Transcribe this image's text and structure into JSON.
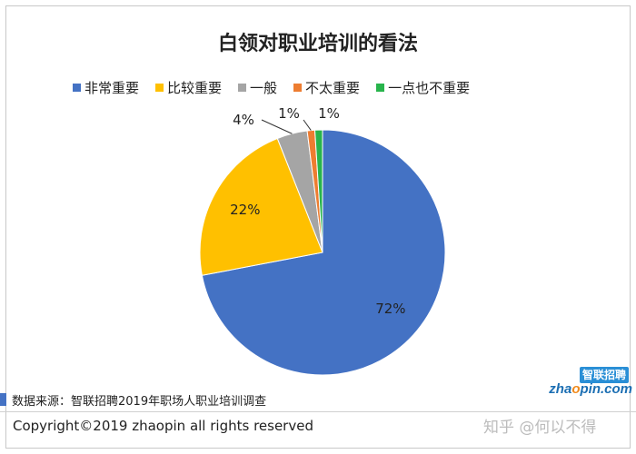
{
  "chart_data": {
    "type": "pie",
    "title": "白领对职业培训的看法",
    "legend_position": "top",
    "slices": [
      {
        "label": "非常重要",
        "value": 72,
        "display": "72%",
        "color": "#4472c4"
      },
      {
        "label": "比较重要",
        "value": 22,
        "display": "22%",
        "color": "#ffc000"
      },
      {
        "label": "一般",
        "value": 4,
        "display": "4%",
        "color": "#a5a5a5"
      },
      {
        "label": "不太重要",
        "value": 1,
        "display": "1%",
        "color": "#ed7d31"
      },
      {
        "label": "一点也不重要",
        "value": 1,
        "display": "1%",
        "color": "#28b44c"
      }
    ]
  },
  "footer": {
    "source": "数据来源：智联招聘2019年职场人职业培训调查",
    "copyright": "Copyright©2019 zhaopin all rights reserved",
    "logo_top": "智联招聘",
    "logo_text_pre": "zha",
    "logo_text_o": "o",
    "logo_text_post": "pin.com",
    "watermark": "知乎 @何以不得"
  }
}
